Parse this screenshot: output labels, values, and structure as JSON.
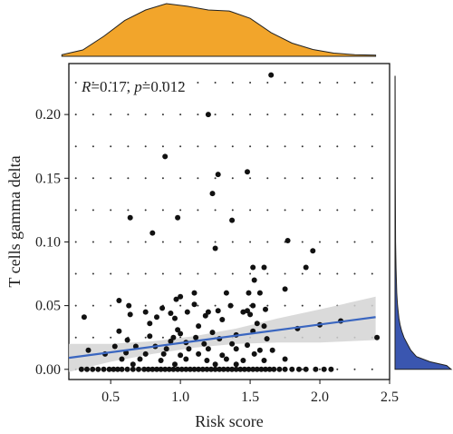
{
  "chart_data": {
    "type": "scatter",
    "annotation": {
      "r_label": "R",
      "r_value": "=0.17, ",
      "p_label": "p",
      "p_value": "=0.012"
    },
    "xlabel": "Risk score",
    "ylabel": "T cells gamma delta",
    "xlim": [
      0.2,
      2.5
    ],
    "ylim": [
      -0.008,
      0.24
    ],
    "xticks": [
      0.5,
      1.0,
      1.5,
      2.0,
      2.5
    ],
    "xtick_labels": [
      "0.5",
      "1.0",
      "1.5",
      "2.0",
      "2.5"
    ],
    "yticks": [
      0.0,
      0.05,
      0.1,
      0.15,
      0.2
    ],
    "ytick_labels": [
      "0.00",
      "0.05",
      "0.10",
      "0.15",
      "0.20"
    ],
    "grid": "dotted",
    "colors": {
      "points": "#111111",
      "fit": "#3a66c0",
      "ci": "#d3d3d3",
      "x_density": "#f2a52b",
      "y_density": "#3a56b0"
    },
    "fit": {
      "x": [
        0.2,
        2.4
      ],
      "y": [
        0.009,
        0.041
      ]
    },
    "ci": {
      "x": [
        0.2,
        0.5,
        0.8,
        1.1,
        1.4,
        1.7,
        2.0,
        2.4
      ],
      "lower": [
        -0.002,
        0.006,
        0.012,
        0.017,
        0.02,
        0.021,
        0.021,
        0.023
      ],
      "upper": [
        0.02,
        0.02,
        0.022,
        0.026,
        0.032,
        0.04,
        0.047,
        0.057
      ]
    },
    "x_density": {
      "x": [
        0.15,
        0.3,
        0.45,
        0.6,
        0.75,
        0.9,
        1.05,
        1.2,
        1.35,
        1.5,
        1.65,
        1.8,
        1.95,
        2.1,
        2.25,
        2.4
      ],
      "d": [
        0.03,
        0.12,
        0.38,
        0.68,
        0.88,
        1.0,
        0.95,
        0.88,
        0.86,
        0.72,
        0.45,
        0.25,
        0.13,
        0.06,
        0.03,
        0.02
      ]
    },
    "y_density": {
      "y": [
        0.0,
        0.003,
        0.006,
        0.01,
        0.015,
        0.02,
        0.025,
        0.03,
        0.035,
        0.04,
        0.05,
        0.06,
        0.08,
        0.1,
        0.15,
        0.2,
        0.23
      ],
      "d": [
        1.0,
        0.92,
        0.62,
        0.38,
        0.28,
        0.22,
        0.16,
        0.12,
        0.09,
        0.07,
        0.045,
        0.03,
        0.017,
        0.01,
        0.005,
        0.003,
        0.002
      ]
    },
    "points": [
      [
        1.65,
        0.231
      ],
      [
        1.2,
        0.2
      ],
      [
        0.89,
        0.167
      ],
      [
        1.27,
        0.153
      ],
      [
        1.48,
        0.155
      ],
      [
        1.23,
        0.138
      ],
      [
        0.64,
        0.119
      ],
      [
        0.98,
        0.119
      ],
      [
        1.37,
        0.117
      ],
      [
        0.8,
        0.107
      ],
      [
        1.77,
        0.101
      ],
      [
        1.25,
        0.095
      ],
      [
        1.95,
        0.093
      ],
      [
        1.9,
        0.08
      ],
      [
        1.52,
        0.08
      ],
      [
        1.6,
        0.08
      ],
      [
        1.53,
        0.07
      ],
      [
        1.75,
        0.063
      ],
      [
        1.57,
        0.06
      ],
      [
        1.49,
        0.06
      ],
      [
        1.1,
        0.06
      ],
      [
        1.33,
        0.06
      ],
      [
        1.0,
        0.057
      ],
      [
        0.56,
        0.054
      ],
      [
        0.97,
        0.055
      ],
      [
        1.1,
        0.051
      ],
      [
        1.36,
        0.05
      ],
      [
        1.52,
        0.05
      ],
      [
        0.63,
        0.05
      ],
      [
        0.87,
        0.048
      ],
      [
        1.27,
        0.046
      ],
      [
        1.48,
        0.046
      ],
      [
        1.61,
        0.047
      ],
      [
        0.75,
        0.045
      ],
      [
        0.93,
        0.044
      ],
      [
        1.05,
        0.045
      ],
      [
        1.2,
        0.045
      ],
      [
        1.45,
        0.045
      ],
      [
        0.64,
        0.043
      ],
      [
        1.18,
        0.042
      ],
      [
        1.5,
        0.043
      ],
      [
        0.31,
        0.041
      ],
      [
        0.83,
        0.041
      ],
      [
        0.96,
        0.04
      ],
      [
        1.3,
        0.039
      ],
      [
        1.55,
        0.036
      ],
      [
        0.78,
        0.036
      ],
      [
        1.13,
        0.034
      ],
      [
        1.6,
        0.034
      ],
      [
        1.84,
        0.032
      ],
      [
        2.0,
        0.035
      ],
      [
        2.15,
        0.038
      ],
      [
        0.56,
        0.03
      ],
      [
        0.98,
        0.031
      ],
      [
        1.23,
        0.029
      ],
      [
        1.52,
        0.03
      ],
      [
        1.0,
        0.028
      ],
      [
        1.4,
        0.027
      ],
      [
        0.78,
        0.026
      ],
      [
        0.95,
        0.025
      ],
      [
        1.11,
        0.025
      ],
      [
        1.28,
        0.024
      ],
      [
        1.62,
        0.024
      ],
      [
        2.41,
        0.025
      ],
      [
        0.62,
        0.023
      ],
      [
        0.93,
        0.022
      ],
      [
        1.04,
        0.021
      ],
      [
        1.17,
        0.02
      ],
      [
        1.37,
        0.02
      ],
      [
        1.48,
        0.019
      ],
      [
        0.53,
        0.018
      ],
      [
        0.68,
        0.018
      ],
      [
        0.82,
        0.018
      ],
      [
        0.9,
        0.016
      ],
      [
        1.06,
        0.016
      ],
      [
        1.2,
        0.016
      ],
      [
        0.34,
        0.015
      ],
      [
        1.4,
        0.016
      ],
      [
        1.57,
        0.015
      ],
      [
        1.66,
        0.015
      ],
      [
        0.46,
        0.012
      ],
      [
        0.61,
        0.013
      ],
      [
        0.75,
        0.012
      ],
      [
        0.88,
        0.012
      ],
      [
        1.0,
        0.011
      ],
      [
        1.13,
        0.012
      ],
      [
        1.3,
        0.011
      ],
      [
        1.53,
        0.012
      ],
      [
        0.58,
        0.008
      ],
      [
        0.71,
        0.008
      ],
      [
        0.86,
        0.007
      ],
      [
        1.04,
        0.008
      ],
      [
        1.19,
        0.007
      ],
      [
        1.33,
        0.008
      ],
      [
        1.45,
        0.007
      ],
      [
        1.6,
        0.007
      ],
      [
        1.75,
        0.008
      ],
      [
        0.66,
        0.004
      ],
      [
        0.96,
        0.004
      ],
      [
        1.25,
        0.004
      ],
      [
        1.4,
        0.004
      ],
      [
        0.29,
        0.0
      ],
      [
        0.33,
        0.0
      ],
      [
        0.37,
        0.0
      ],
      [
        0.41,
        0.0
      ],
      [
        0.45,
        0.0
      ],
      [
        0.49,
        0.0
      ],
      [
        0.52,
        0.0
      ],
      [
        0.55,
        0.0
      ],
      [
        0.58,
        0.0
      ],
      [
        0.62,
        0.0
      ],
      [
        0.66,
        0.0
      ],
      [
        0.7,
        0.0
      ],
      [
        0.74,
        0.0
      ],
      [
        0.77,
        0.0
      ],
      [
        0.8,
        0.0
      ],
      [
        0.83,
        0.0
      ],
      [
        0.86,
        0.0
      ],
      [
        0.89,
        0.0
      ],
      [
        0.92,
        0.0
      ],
      [
        0.95,
        0.0
      ],
      [
        0.98,
        0.0
      ],
      [
        1.01,
        0.0
      ],
      [
        1.04,
        0.0
      ],
      [
        1.07,
        0.0
      ],
      [
        1.1,
        0.0
      ],
      [
        1.13,
        0.0
      ],
      [
        1.16,
        0.0
      ],
      [
        1.19,
        0.0
      ],
      [
        1.22,
        0.0
      ],
      [
        1.25,
        0.0
      ],
      [
        1.28,
        0.0
      ],
      [
        1.31,
        0.0
      ],
      [
        1.34,
        0.0
      ],
      [
        1.37,
        0.0
      ],
      [
        1.4,
        0.0
      ],
      [
        1.43,
        0.0
      ],
      [
        1.46,
        0.0
      ],
      [
        1.49,
        0.0
      ],
      [
        1.52,
        0.0
      ],
      [
        1.55,
        0.0
      ],
      [
        1.58,
        0.0
      ],
      [
        1.61,
        0.0
      ],
      [
        1.64,
        0.0
      ],
      [
        1.67,
        0.0
      ],
      [
        1.71,
        0.0
      ],
      [
        1.75,
        0.0
      ],
      [
        1.8,
        0.0
      ],
      [
        1.85,
        0.0
      ],
      [
        1.9,
        0.0
      ],
      [
        1.97,
        0.0
      ],
      [
        2.03,
        0.0
      ],
      [
        2.08,
        0.0
      ]
    ]
  }
}
